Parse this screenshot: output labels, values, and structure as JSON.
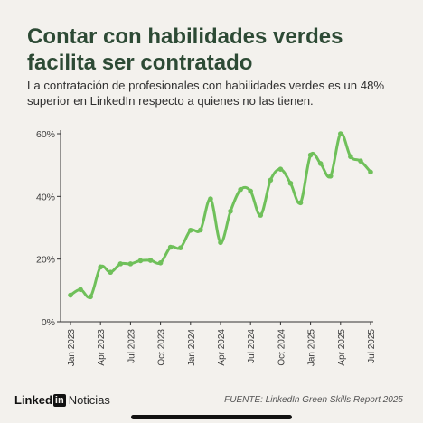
{
  "header": {
    "title": "Contar con habilidades verdes facilita ser contratado",
    "subtitle": "La contratación de profesionales con habilidades verdes es un 48% superior en LinkedIn respecto a quienes no las tienen."
  },
  "footer": {
    "brand_linked": "Linked",
    "brand_in": "in",
    "brand_news": "Noticias",
    "source": "FUENTE: LinkedIn Green Skills Report 2025"
  },
  "colors": {
    "background": "#f3f1ed",
    "line": "#6fc05a",
    "title": "#2d4a35"
  },
  "chart_data": {
    "type": "line",
    "title": "",
    "xlabel": "",
    "ylabel": "",
    "ylim": [
      0,
      60
    ],
    "y_ticks": [
      0,
      20,
      40,
      60
    ],
    "y_tick_labels": [
      "0%",
      "20%",
      "40%",
      "60%"
    ],
    "x_tick_labels": [
      "Jan 2023",
      "Apr 2023",
      "Jul 2023",
      "Oct 2023",
      "Jan 2024",
      "Apr 2024",
      "Jul 2024",
      "Oct 2024",
      "Jan 2025",
      "Apr 2025",
      "Jul 2025"
    ],
    "grid": false,
    "x": [
      "Jan 2023",
      "Feb 2023",
      "Mar 2023",
      "Apr 2023",
      "May 2023",
      "Jun 2023",
      "Jul 2023",
      "Aug 2023",
      "Sep 2023",
      "Oct 2023",
      "Nov 2023",
      "Dec 2023",
      "Jan 2024",
      "Feb 2024",
      "Mar 2024",
      "Apr 2024",
      "May 2024",
      "Jun 2024",
      "Jul 2024",
      "Aug 2024",
      "Sep 2024",
      "Oct 2024",
      "Nov 2024",
      "Dec 2024",
      "Jan 2025",
      "Feb 2025",
      "Mar 2025",
      "Apr 2025",
      "May 2025",
      "Jun 2025",
      "Jul 2025"
    ],
    "series": [
      {
        "values": [
          8.5,
          10.3,
          8.0,
          17.5,
          15.8,
          18.5,
          18.5,
          19.5,
          19.6,
          18.8,
          23.8,
          23.6,
          29.2,
          29.3,
          39.2,
          25.3,
          35.3,
          42.2,
          41.7,
          34.0,
          45.2,
          48.7,
          44.2,
          38.0,
          53.2,
          50.5,
          46.5,
          60.0,
          52.7,
          51.3,
          47.8
        ]
      }
    ]
  }
}
